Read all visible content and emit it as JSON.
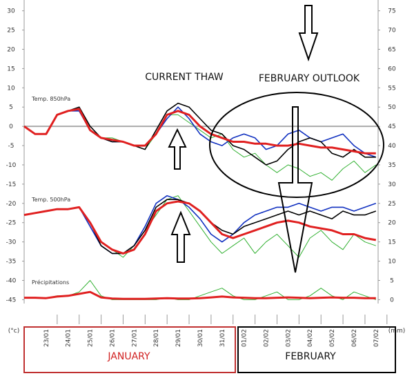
{
  "chart_data": {
    "type": "line",
    "y_label": "(°c)",
    "y2_label": "(mm)",
    "annotations": [
      "CURRENT THAW",
      "FEBRUARY OUTLOOK",
      "JANUARY",
      "FEBRUARY"
    ],
    "xlim": [
      -1,
      15.1
    ],
    "xticks": [
      {
        "value": 0,
        "label": "23/01"
      },
      {
        "value": 1,
        "label": "24/01"
      },
      {
        "value": 2,
        "label": "25/01"
      },
      {
        "value": 3,
        "label": "26/01"
      },
      {
        "value": 4,
        "label": "27/01"
      },
      {
        "value": 5,
        "label": "28/01"
      },
      {
        "value": 6,
        "label": "29/01"
      },
      {
        "value": 7,
        "label": "30/01"
      },
      {
        "value": 8,
        "label": "31/01"
      },
      {
        "value": 9,
        "label": "01/02"
      },
      {
        "value": 10,
        "label": "02/02"
      },
      {
        "value": 11,
        "label": "03/02"
      },
      {
        "value": 12,
        "label": "04/02"
      },
      {
        "value": 13,
        "label": "05/02"
      },
      {
        "value": 14,
        "label": "06/02"
      },
      {
        "value": 15,
        "label": "07/02"
      }
    ],
    "ylim": [
      -46,
      32.8
    ],
    "yticks": [
      30,
      25,
      20,
      15,
      10,
      5,
      0,
      -5,
      -10,
      -15,
      -20,
      -25,
      -30,
      -35,
      -40,
      -45
    ],
    "y2lim": [
      -1,
      77.8
    ],
    "y2ticks": [
      75,
      70,
      65,
      60,
      55,
      50,
      45,
      40,
      35,
      30,
      25,
      20,
      15,
      10,
      5,
      0
    ],
    "x": [
      -1,
      -0.5,
      0,
      0.5,
      1,
      1.5,
      2,
      2.5,
      3,
      3.5,
      4,
      4.5,
      5,
      5.5,
      6,
      6.5,
      7,
      7.5,
      8,
      8.5,
      9,
      9.5,
      10,
      10.5,
      11,
      11.5,
      12,
      12.5,
      13,
      13.5,
      14,
      14.5,
      15
    ],
    "series": [
      {
        "color": "#30b030",
        "values": [
          0,
          -2,
          -2,
          3,
          4,
          4,
          -1,
          -3,
          -3,
          -4,
          -5,
          -6,
          -2,
          3,
          3,
          1,
          -1,
          -3,
          -2,
          -6,
          -8,
          -7,
          -10,
          -12,
          -10,
          -11,
          -13,
          -12,
          -14,
          -11,
          -9,
          -12,
          -10
        ]
      },
      {
        "color": "#1030c0",
        "values": [
          0,
          -2,
          -2,
          3,
          4,
          4,
          -1,
          -3,
          -4,
          -4,
          -5,
          -5,
          -2,
          2,
          5,
          2,
          -2,
          -4,
          -5,
          -3,
          -2,
          -3,
          -6,
          -5,
          -2,
          -1,
          -3,
          -4,
          -3,
          -2,
          -5,
          -7,
          -8
        ]
      },
      {
        "color": "#000000",
        "values": [
          0,
          -2,
          -2,
          3,
          4,
          5,
          0,
          -3,
          -4,
          -4,
          -5,
          -6,
          -1,
          4,
          6,
          5,
          2,
          -1,
          -2,
          -5,
          -6,
          -8,
          -10,
          -9,
          -6,
          -4,
          -3,
          -4,
          -7,
          -8,
          -6,
          -8,
          -8
        ]
      },
      {
        "name": "Temp. 850hPa",
        "color": "#e02020",
        "values": [
          0,
          -2,
          -2,
          3,
          4,
          4.5,
          -1,
          -3,
          -3.5,
          -4,
          -5,
          -5,
          -2,
          3,
          4,
          3,
          0,
          -2,
          -3,
          -4,
          -4,
          -4.5,
          -4.5,
          -5,
          -5,
          -4.5,
          -5,
          -5.5,
          -5.5,
          -6,
          -6.5,
          -7,
          -7
        ]
      },
      {
        "color": "#30b030",
        "values": [
          -23,
          -22.5,
          -22,
          -21.5,
          -21.5,
          -21,
          -25,
          -30,
          -32,
          -34,
          -31,
          -27,
          -23,
          -19,
          -18,
          -22,
          -26,
          -30,
          -33,
          -31,
          -29,
          -33,
          -30,
          -28,
          -31,
          -34,
          -29,
          -27,
          -30,
          -32,
          -28,
          -30,
          -31
        ]
      },
      {
        "color": "#1030c0",
        "values": [
          -23,
          -22.5,
          -22,
          -21.5,
          -21.5,
          -21,
          -26,
          -31,
          -33,
          -33,
          -31,
          -26,
          -20,
          -18,
          -19,
          -21,
          -24,
          -28,
          -30,
          -28,
          -25,
          -23,
          -22,
          -21,
          -21,
          -20,
          -21,
          -22,
          -21,
          -21,
          -22,
          -21,
          -20
        ]
      },
      {
        "color": "#000000",
        "values": [
          -23,
          -22.5,
          -22,
          -21.5,
          -21.5,
          -21,
          -25,
          -31,
          -33,
          -33,
          -31,
          -27,
          -21,
          -19,
          -19,
          -20,
          -22,
          -25,
          -27,
          -28,
          -26,
          -25,
          -24,
          -23,
          -22,
          -23,
          -22,
          -23,
          -24,
          -22,
          -23,
          -23,
          -22
        ]
      },
      {
        "name": "Temp. 500hPa",
        "color": "#e02020",
        "values": [
          -23,
          -22.5,
          -22,
          -21.5,
          -21.5,
          -21,
          -25,
          -30,
          -32,
          -33,
          -32,
          -28,
          -22,
          -20,
          -19.5,
          -20,
          -22,
          -25,
          -28,
          -29,
          -28,
          -27,
          -26,
          -25,
          -24.5,
          -25,
          -26,
          -26.5,
          -27,
          -28,
          -28,
          -29,
          -29.5
        ]
      },
      {
        "axis": "y2",
        "color": "#30b030",
        "values": [
          0.5,
          0.5,
          0.4,
          1,
          1,
          2,
          5,
          1,
          0,
          0,
          0,
          0,
          0,
          0.5,
          0,
          0,
          1,
          2,
          3,
          1,
          0,
          0,
          1,
          2,
          0,
          0,
          1,
          3,
          1,
          0,
          2,
          1,
          0
        ]
      },
      {
        "name": "Précipitations",
        "axis": "y2",
        "color": "#e02020",
        "values": [
          0.5,
          0.5,
          0.4,
          0.8,
          1,
          1.5,
          2,
          0.6,
          0.3,
          0.2,
          0.2,
          0.2,
          0.3,
          0.4,
          0.3,
          0.3,
          0.4,
          0.6,
          0.8,
          0.6,
          0.5,
          0.4,
          0.4,
          0.5,
          0.6,
          0.5,
          0.4,
          0.5,
          0.6,
          0.5,
          0.5,
          0.4,
          0.4
        ]
      }
    ]
  }
}
